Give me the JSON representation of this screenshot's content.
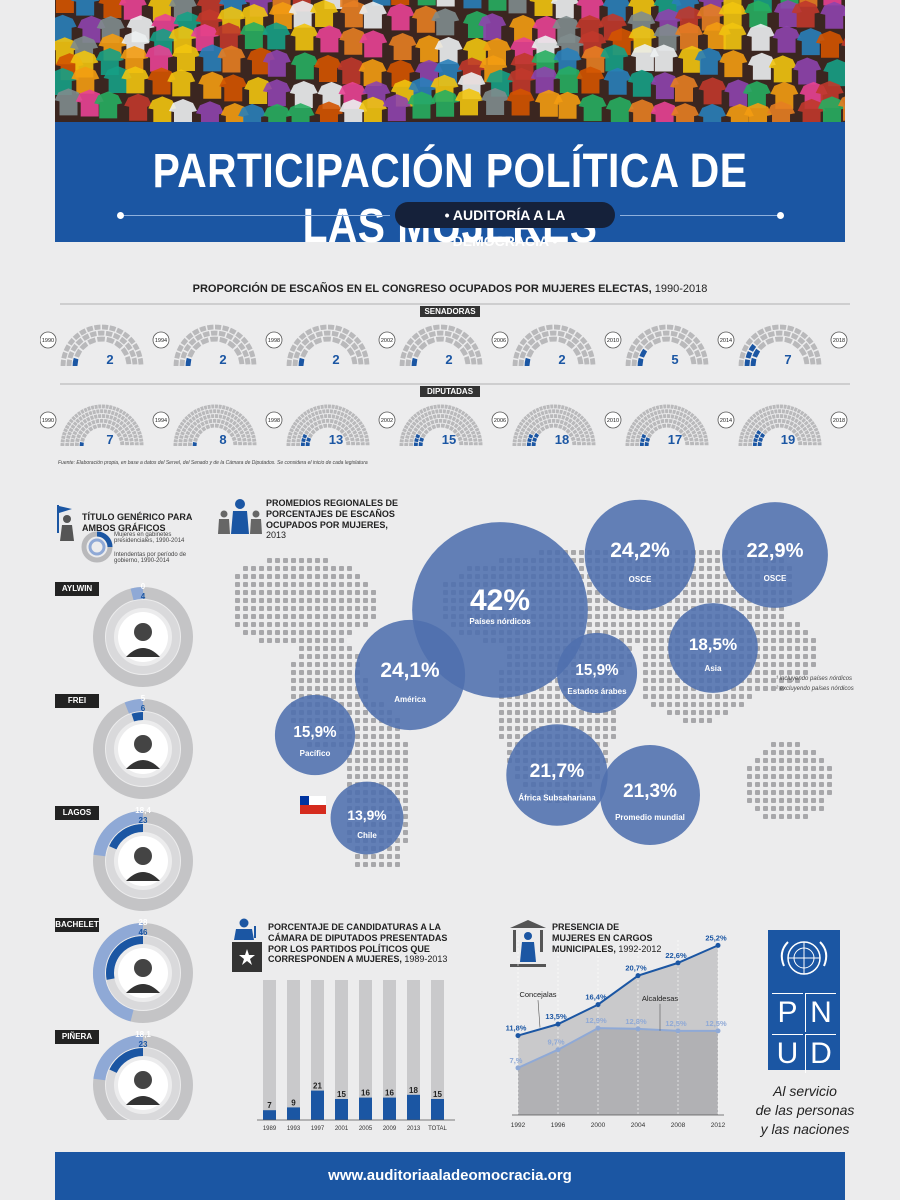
{
  "header": {
    "title": "PARTICIPACIÓN POLÍTICA DE LAS MUJERES",
    "subtitle": "AUDITORÍA A LA DEMOCRACIA"
  },
  "congress": {
    "heading": "PROPORCIÓN DE ESCAÑOS EN EL CONGRESO OCUPADOS POR MUJERES ELECTAS,",
    "heading_years": "1990-2018",
    "senadoras_label": "SENADORAS",
    "diputadas_label": "DIPUTADAS",
    "source": "Fuente: Elaboración propia, en base a datos del Servel, del Senado y de la Cámara de Diputados. Se considera el inicio de cada legislatura"
  },
  "pres": {
    "title": "TÍTULO GENÉRICO PARA AMBOS GRÁFICOS",
    "legend_outer": "Mujeres en gabinetes presidenciales, 1990-2014",
    "legend_inner": "Intendentas por período de gobierno, 1990-2014"
  },
  "map": {
    "heading": "PROMEDIOS REGIONALES DE PORCENTAJES DE ESCAÑOS OCUPADOS POR MUJERES,",
    "heading_year": "2013",
    "legend_1": "incluyendo países nórdicos",
    "legend_2": "excluyendo países nórdicos"
  },
  "cand": {
    "heading": "PORCENTAJE DE CANDIDATURAS A LA CÁMARA DE DIPUTADOS PRESENTADAS POR LOS PARTIDOS POLÍTICOS QUE CORRESPONDEN A MUJERES,",
    "heading_years": "1989-2013"
  },
  "muni": {
    "heading": "PRESENCIA DE MUJERES EN CARGOS MUNICIPALES,",
    "heading_years": "1992-2012",
    "label_concejalas": "Concejalas",
    "label_alcaldesas": "Alcaldesas"
  },
  "pnud": {
    "letters": [
      "P",
      "N",
      "U",
      "D"
    ],
    "tagline_1": "Al servicio",
    "tagline_2": "de las personas",
    "tagline_3": "y las naciones"
  },
  "footer": {
    "url": "www.auditoriaaladeomocracia.org"
  },
  "colors": {
    "blue": "#1b56a3",
    "light_blue": "#8fa9d6",
    "bubble": "#4f6fae",
    "gray": "#b9b9bb",
    "dot": "#a7a7aa"
  },
  "chart_data": [
    {
      "type": "bar",
      "title": "SENADORAS",
      "categories": [
        "1990",
        "1994",
        "1998",
        "2002",
        "2006",
        "2010",
        "2014"
      ],
      "values": [
        2,
        2,
        2,
        2,
        2,
        5,
        7
      ],
      "end_year": "2018",
      "total_seats": 38
    },
    {
      "type": "bar",
      "title": "DIPUTADAS",
      "categories": [
        "1990",
        "1994",
        "1998",
        "2002",
        "2006",
        "2010",
        "2014"
      ],
      "values": [
        7,
        8,
        13,
        15,
        18,
        17,
        19
      ],
      "end_year": "2018",
      "total_seats": 120
    },
    {
      "type": "pie",
      "title": "TÍTULO GENÉRICO PARA AMBOS GRÁFICOS",
      "series": [
        {
          "name": "Mujeres en gabinetes presidenciales, 1990-2014",
          "values": [
            4,
            6,
            23,
            46,
            23
          ]
        },
        {
          "name": "Intendentas por período de gobierno, 1990-2014",
          "values": [
            0,
            5,
            18.4,
            28,
            18.1
          ]
        }
      ],
      "categories": [
        "AYLWIN",
        "FREI",
        "LAGOS",
        "BACHELET",
        "PIÑERA"
      ],
      "labels_outer": [
        "4",
        "6",
        "23",
        "46",
        "23"
      ],
      "labels_inner": [
        "0",
        "5",
        "18,4",
        "28",
        "18,1"
      ]
    },
    {
      "type": "scatter",
      "title": "PROMEDIOS REGIONALES DE PORCENTAJES DE ESCAÑOS OCUPADOS POR MUJERES, 2013",
      "points": [
        {
          "value": 42,
          "label": "42%",
          "name": "Países nórdicos"
        },
        {
          "value": 24.2,
          "label": "24,2%",
          "name": "OSCE(1)"
        },
        {
          "value": 22.9,
          "label": "22,9%",
          "name": "OSCE(2)"
        },
        {
          "value": 24.1,
          "label": "24,1%",
          "name": "América"
        },
        {
          "value": 18.5,
          "label": "18,5%",
          "name": "Asia"
        },
        {
          "value": 15.9,
          "label": "15,9%",
          "name": "Estados árabes"
        },
        {
          "value": 15.9,
          "label": "15,9%",
          "name": "Pacífico"
        },
        {
          "value": 21.7,
          "label": "21,7%",
          "name": "África Subsahariana"
        },
        {
          "value": 21.3,
          "label": "21,3%",
          "name": "Promedio mundial"
        },
        {
          "value": 13.9,
          "label": "13,9%",
          "name": "Chile"
        }
      ]
    },
    {
      "type": "bar",
      "title": "PORCENTAJE DE CANDIDATURAS A LA CÁMARA DE DIPUTADOS PRESENTADAS POR LOS PARTIDOS POLÍTICOS QUE CORRESPONDEN A MUJERES, 1989-2013",
      "categories": [
        "1989",
        "1993",
        "1997",
        "2001",
        "2005",
        "2009",
        "2013",
        "TOTAL"
      ],
      "values": [
        7,
        9,
        21,
        15,
        16,
        16,
        18,
        15
      ],
      "ylim": [
        0,
        100
      ]
    },
    {
      "type": "line",
      "title": "PRESENCIA DE MUJERES EN CARGOS MUNICIPALES, 1992-2012",
      "x": [
        "1992",
        "1996",
        "2000",
        "2004",
        "2008",
        "2012"
      ],
      "series": [
        {
          "name": "Concejalas",
          "values": [
            11.8,
            13.5,
            16.4,
            20.7,
            22.6,
            25.2
          ],
          "labels": [
            "11,8%",
            "13,5%",
            "16,4%",
            "20,7%",
            "22,6%",
            "25,2%"
          ]
        },
        {
          "name": "Alcaldesas",
          "values": [
            7.0,
            9.7,
            12.9,
            12.8,
            12.5,
            12.5
          ],
          "labels": [
            "7,%",
            "9,7%",
            "12,9%",
            "12,8%",
            "12,5%",
            "12,5%"
          ]
        }
      ],
      "ylim": [
        0,
        26
      ]
    }
  ]
}
